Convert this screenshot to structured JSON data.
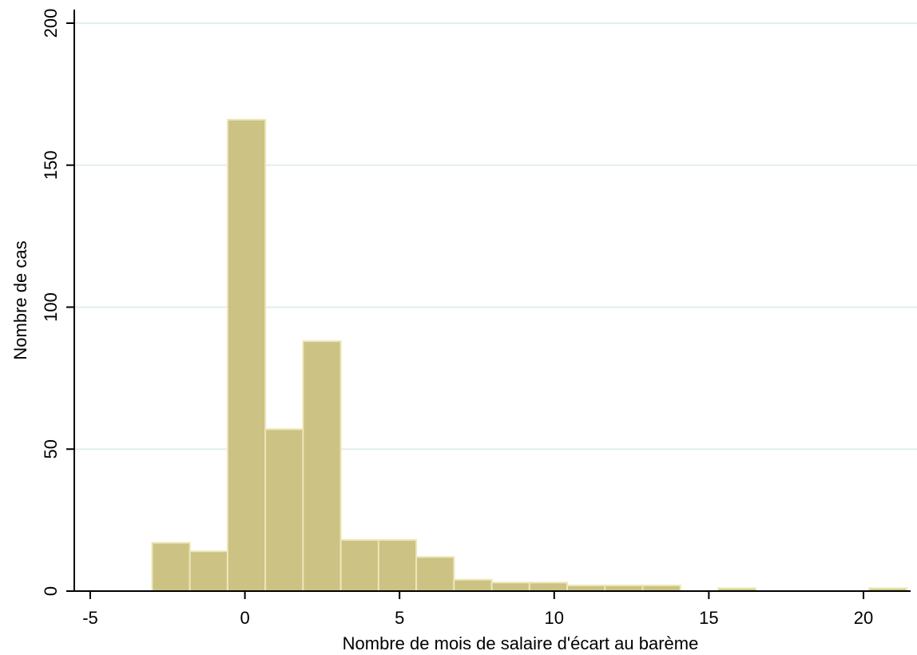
{
  "chart_data": {
    "type": "bar",
    "title": "",
    "xlabel": "Nombre de mois de salaire d'écart au barème",
    "ylabel": "Nombre de cas",
    "xlim": [
      -5.5,
      21.5
    ],
    "ylim": [
      0,
      200
    ],
    "xticks": [
      -5,
      0,
      5,
      10,
      15,
      20
    ],
    "yticks": [
      0,
      50,
      100,
      150,
      200
    ],
    "grid": true,
    "bin_width": 1.22,
    "bins": [
      {
        "x0": -3.0,
        "x1": -1.78,
        "count": 17
      },
      {
        "x0": -1.78,
        "x1": -0.56,
        "count": 14
      },
      {
        "x0": -0.56,
        "x1": 0.66,
        "count": 166
      },
      {
        "x0": 0.66,
        "x1": 1.88,
        "count": 57
      },
      {
        "x0": 1.88,
        "x1": 3.1,
        "count": 88
      },
      {
        "x0": 3.1,
        "x1": 4.32,
        "count": 18
      },
      {
        "x0": 4.32,
        "x1": 5.54,
        "count": 18
      },
      {
        "x0": 5.54,
        "x1": 6.76,
        "count": 12
      },
      {
        "x0": 6.76,
        "x1": 7.98,
        "count": 4
      },
      {
        "x0": 7.98,
        "x1": 9.2,
        "count": 3
      },
      {
        "x0": 9.2,
        "x1": 10.42,
        "count": 3
      },
      {
        "x0": 10.42,
        "x1": 11.64,
        "count": 2
      },
      {
        "x0": 11.64,
        "x1": 12.86,
        "count": 2
      },
      {
        "x0": 12.86,
        "x1": 14.08,
        "count": 2
      },
      {
        "x0": 14.08,
        "x1": 15.3,
        "count": 0
      },
      {
        "x0": 15.3,
        "x1": 16.52,
        "count": 1
      },
      {
        "x0": 16.52,
        "x1": 17.74,
        "count": 0
      },
      {
        "x0": 17.74,
        "x1": 18.96,
        "count": 0
      },
      {
        "x0": 18.96,
        "x1": 20.18,
        "count": 0
      },
      {
        "x0": 20.18,
        "x1": 21.4,
        "count": 1
      }
    ]
  },
  "colors": {
    "bar_fill": "#cbc283",
    "bar_stroke": "#ece6b8",
    "grid": "#e3eeee",
    "axis": "#000000"
  }
}
